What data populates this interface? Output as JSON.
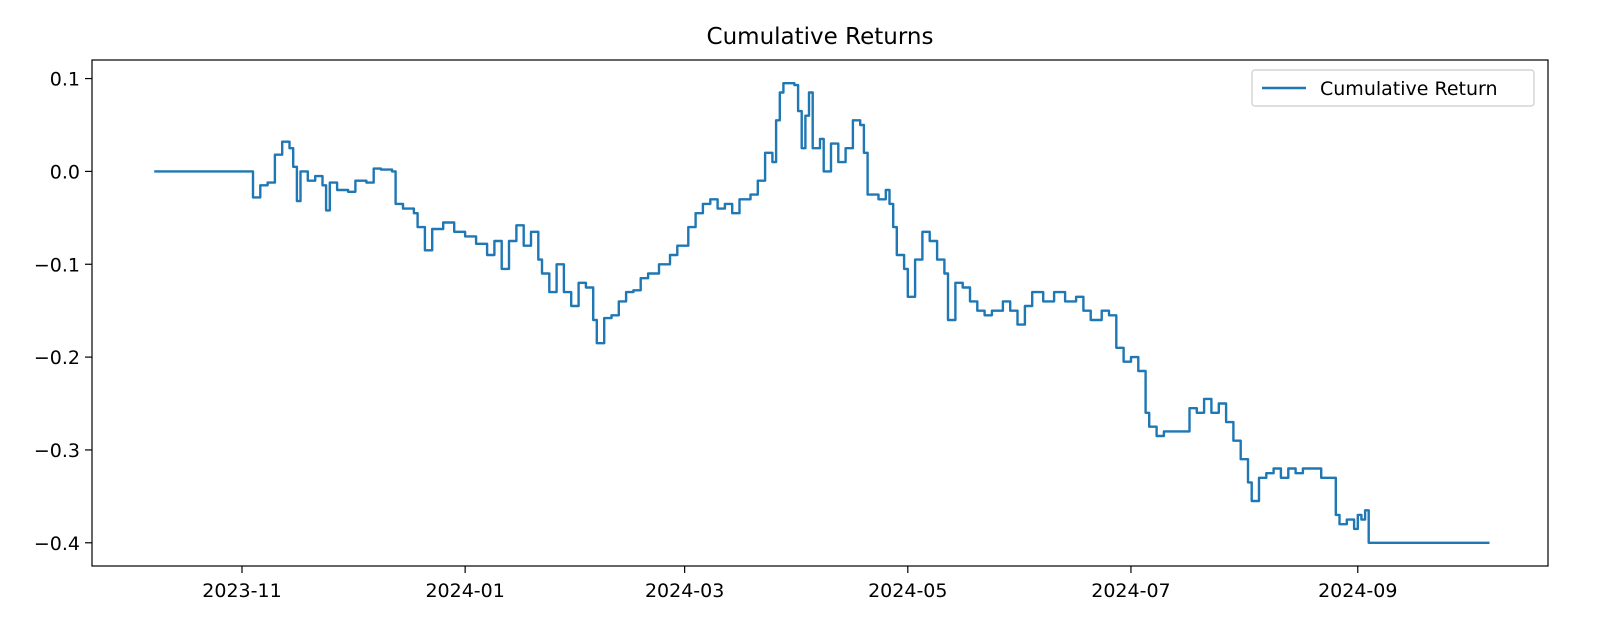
{
  "chart_data": {
    "type": "line",
    "title": "Cumulative Returns",
    "xlabel": "",
    "ylabel": "",
    "x_type": "date",
    "xlim": [
      "2023-09-21",
      "2024-10-23"
    ],
    "ylim": [
      -0.425,
      0.12
    ],
    "x_ticks": [
      "2023-11-01",
      "2024-01-01",
      "2024-03-01",
      "2024-05-01",
      "2024-07-01",
      "2024-09-01"
    ],
    "x_tick_labels": [
      "2023-11",
      "2024-01",
      "2024-03",
      "2024-05",
      "2024-07",
      "2024-09"
    ],
    "y_ticks": [
      0.1,
      0.0,
      -0.1,
      -0.2,
      -0.3,
      -0.4
    ],
    "y_tick_labels": [
      "0.1",
      "0.0",
      "−0.1",
      "−0.2",
      "−0.3",
      "−0.4"
    ],
    "grid": false,
    "legend_position": "top-right",
    "series": [
      {
        "name": "Cumulative Return",
        "color": "#1f77b4",
        "points": [
          [
            "2023-10-08",
            0.0
          ],
          [
            "2023-10-25",
            0.0
          ],
          [
            "2023-11-03",
            0.0
          ],
          [
            "2023-11-04",
            -0.028
          ],
          [
            "2023-11-06",
            -0.015
          ],
          [
            "2023-11-08",
            -0.012
          ],
          [
            "2023-11-10",
            0.018
          ],
          [
            "2023-11-12",
            0.032
          ],
          [
            "2023-11-14",
            0.025
          ],
          [
            "2023-11-15",
            0.005
          ],
          [
            "2023-11-16",
            -0.032
          ],
          [
            "2023-11-17",
            0.0
          ],
          [
            "2023-11-19",
            -0.01
          ],
          [
            "2023-11-21",
            -0.005
          ],
          [
            "2023-11-23",
            -0.015
          ],
          [
            "2023-11-24",
            -0.042
          ],
          [
            "2023-11-25",
            -0.012
          ],
          [
            "2023-11-27",
            -0.02
          ],
          [
            "2023-11-30",
            -0.022
          ],
          [
            "2023-12-02",
            -0.01
          ],
          [
            "2023-12-05",
            -0.012
          ],
          [
            "2023-12-07",
            0.003
          ],
          [
            "2023-12-09",
            0.002
          ],
          [
            "2023-12-12",
            0.0
          ],
          [
            "2023-12-13",
            -0.035
          ],
          [
            "2023-12-15",
            -0.04
          ],
          [
            "2023-12-18",
            -0.045
          ],
          [
            "2023-12-19",
            -0.06
          ],
          [
            "2023-12-21",
            -0.085
          ],
          [
            "2023-12-23",
            -0.062
          ],
          [
            "2023-12-26",
            -0.055
          ],
          [
            "2023-12-29",
            -0.065
          ],
          [
            "2024-01-01",
            -0.07
          ],
          [
            "2024-01-04",
            -0.078
          ],
          [
            "2024-01-07",
            -0.09
          ],
          [
            "2024-01-09",
            -0.075
          ],
          [
            "2024-01-11",
            -0.105
          ],
          [
            "2024-01-13",
            -0.075
          ],
          [
            "2024-01-15",
            -0.058
          ],
          [
            "2024-01-17",
            -0.08
          ],
          [
            "2024-01-19",
            -0.065
          ],
          [
            "2024-01-21",
            -0.095
          ],
          [
            "2024-01-22",
            -0.11
          ],
          [
            "2024-01-24",
            -0.13
          ],
          [
            "2024-01-26",
            -0.1
          ],
          [
            "2024-01-28",
            -0.13
          ],
          [
            "2024-01-30",
            -0.145
          ],
          [
            "2024-02-01",
            -0.12
          ],
          [
            "2024-02-03",
            -0.125
          ],
          [
            "2024-02-05",
            -0.16
          ],
          [
            "2024-02-06",
            -0.185
          ],
          [
            "2024-02-08",
            -0.158
          ],
          [
            "2024-02-10",
            -0.155
          ],
          [
            "2024-02-12",
            -0.14
          ],
          [
            "2024-02-14",
            -0.13
          ],
          [
            "2024-02-16",
            -0.128
          ],
          [
            "2024-02-18",
            -0.115
          ],
          [
            "2024-02-20",
            -0.11
          ],
          [
            "2024-02-23",
            -0.1
          ],
          [
            "2024-02-26",
            -0.09
          ],
          [
            "2024-02-28",
            -0.08
          ],
          [
            "2024-03-02",
            -0.06
          ],
          [
            "2024-03-04",
            -0.045
          ],
          [
            "2024-03-06",
            -0.035
          ],
          [
            "2024-03-08",
            -0.03
          ],
          [
            "2024-03-10",
            -0.04
          ],
          [
            "2024-03-12",
            -0.035
          ],
          [
            "2024-03-14",
            -0.045
          ],
          [
            "2024-03-16",
            -0.03
          ],
          [
            "2024-03-19",
            -0.025
          ],
          [
            "2024-03-21",
            -0.01
          ],
          [
            "2024-03-23",
            0.02
          ],
          [
            "2024-03-25",
            0.01
          ],
          [
            "2024-03-26",
            0.055
          ],
          [
            "2024-03-27",
            0.085
          ],
          [
            "2024-03-28",
            0.095
          ],
          [
            "2024-03-31",
            0.093
          ],
          [
            "2024-04-01",
            0.065
          ],
          [
            "2024-04-02",
            0.025
          ],
          [
            "2024-04-03",
            0.06
          ],
          [
            "2024-04-04",
            0.085
          ],
          [
            "2024-04-05",
            0.025
          ],
          [
            "2024-04-07",
            0.035
          ],
          [
            "2024-04-08",
            0.0
          ],
          [
            "2024-04-10",
            0.03
          ],
          [
            "2024-04-12",
            0.01
          ],
          [
            "2024-04-14",
            0.025
          ],
          [
            "2024-04-16",
            0.055
          ],
          [
            "2024-04-18",
            0.05
          ],
          [
            "2024-04-19",
            0.02
          ],
          [
            "2024-04-20",
            -0.025
          ],
          [
            "2024-04-23",
            -0.03
          ],
          [
            "2024-04-25",
            -0.02
          ],
          [
            "2024-04-26",
            -0.035
          ],
          [
            "2024-04-27",
            -0.06
          ],
          [
            "2024-04-28",
            -0.09
          ],
          [
            "2024-04-30",
            -0.105
          ],
          [
            "2024-05-01",
            -0.135
          ],
          [
            "2024-05-03",
            -0.095
          ],
          [
            "2024-05-05",
            -0.065
          ],
          [
            "2024-05-07",
            -0.075
          ],
          [
            "2024-05-09",
            -0.095
          ],
          [
            "2024-05-11",
            -0.11
          ],
          [
            "2024-05-12",
            -0.16
          ],
          [
            "2024-05-14",
            -0.12
          ],
          [
            "2024-05-16",
            -0.125
          ],
          [
            "2024-05-18",
            -0.14
          ],
          [
            "2024-05-20",
            -0.15
          ],
          [
            "2024-05-22",
            -0.155
          ],
          [
            "2024-05-24",
            -0.15
          ],
          [
            "2024-05-27",
            -0.14
          ],
          [
            "2024-05-29",
            -0.15
          ],
          [
            "2024-05-31",
            -0.165
          ],
          [
            "2024-06-02",
            -0.145
          ],
          [
            "2024-06-04",
            -0.13
          ],
          [
            "2024-06-07",
            -0.14
          ],
          [
            "2024-06-10",
            -0.13
          ],
          [
            "2024-06-13",
            -0.14
          ],
          [
            "2024-06-16",
            -0.135
          ],
          [
            "2024-06-18",
            -0.15
          ],
          [
            "2024-06-20",
            -0.16
          ],
          [
            "2024-06-23",
            -0.15
          ],
          [
            "2024-06-25",
            -0.155
          ],
          [
            "2024-06-27",
            -0.19
          ],
          [
            "2024-06-29",
            -0.205
          ],
          [
            "2024-07-01",
            -0.2
          ],
          [
            "2024-07-03",
            -0.215
          ],
          [
            "2024-07-05",
            -0.26
          ],
          [
            "2024-07-06",
            -0.275
          ],
          [
            "2024-07-08",
            -0.285
          ],
          [
            "2024-07-10",
            -0.28
          ],
          [
            "2024-07-12",
            -0.28
          ],
          [
            "2024-07-14",
            -0.28
          ],
          [
            "2024-07-17",
            -0.255
          ],
          [
            "2024-07-19",
            -0.26
          ],
          [
            "2024-07-21",
            -0.245
          ],
          [
            "2024-07-23",
            -0.26
          ],
          [
            "2024-07-25",
            -0.25
          ],
          [
            "2024-07-27",
            -0.27
          ],
          [
            "2024-07-29",
            -0.29
          ],
          [
            "2024-07-31",
            -0.31
          ],
          [
            "2024-08-02",
            -0.335
          ],
          [
            "2024-08-03",
            -0.355
          ],
          [
            "2024-08-05",
            -0.33
          ],
          [
            "2024-08-07",
            -0.325
          ],
          [
            "2024-08-09",
            -0.32
          ],
          [
            "2024-08-11",
            -0.33
          ],
          [
            "2024-08-13",
            -0.32
          ],
          [
            "2024-08-15",
            -0.325
          ],
          [
            "2024-08-17",
            -0.32
          ],
          [
            "2024-08-20",
            -0.32
          ],
          [
            "2024-08-22",
            -0.33
          ],
          [
            "2024-08-24",
            -0.33
          ],
          [
            "2024-08-26",
            -0.37
          ],
          [
            "2024-08-27",
            -0.38
          ],
          [
            "2024-08-29",
            -0.375
          ],
          [
            "2024-08-31",
            -0.385
          ],
          [
            "2024-09-01",
            -0.37
          ],
          [
            "2024-09-02",
            -0.375
          ],
          [
            "2024-09-03",
            -0.365
          ],
          [
            "2024-09-04",
            -0.4
          ],
          [
            "2024-09-20",
            -0.4
          ],
          [
            "2024-10-07",
            -0.4
          ]
        ]
      }
    ]
  }
}
